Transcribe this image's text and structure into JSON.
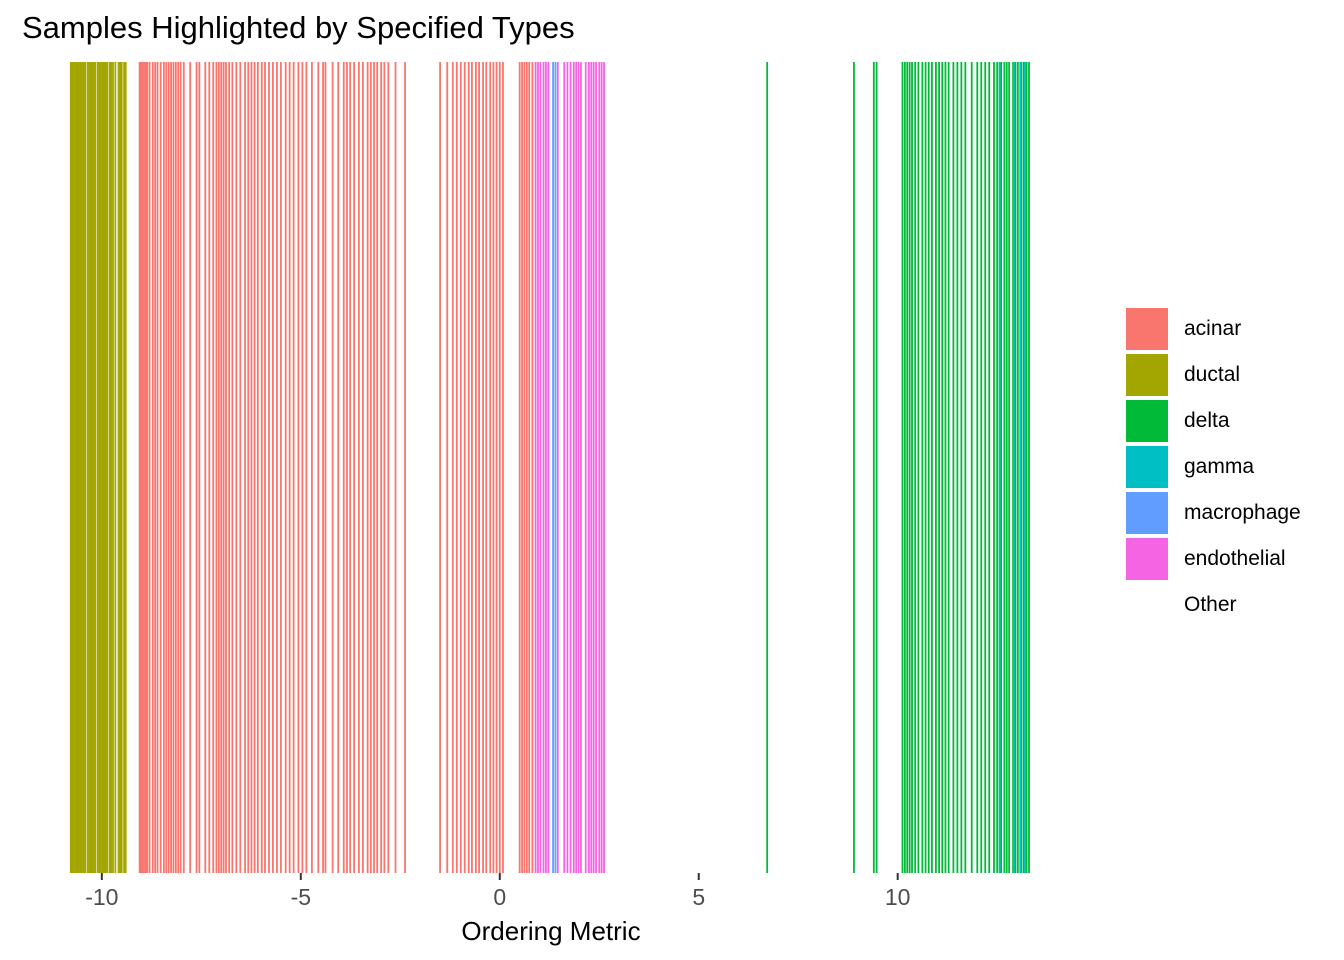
{
  "chart_data": {
    "type": "bar",
    "title": "Samples Highlighted by Specified Types",
    "xlabel": "Ordering Metric",
    "ylabel": "",
    "xlim": [
      -10.8,
      13.4
    ],
    "xticks": [
      -10,
      -5,
      0,
      5,
      10
    ],
    "xtick_labels": [
      "-10",
      "-5",
      "0",
      "5",
      "10"
    ],
    "grid": false,
    "legend_position": "right",
    "legend": [
      {
        "name": "acinar",
        "color": "#F8766D"
      },
      {
        "name": "ductal",
        "color": "#A3A500"
      },
      {
        "name": "delta",
        "color": "#00BA38"
      },
      {
        "name": "gamma",
        "color": "#00BFC4"
      },
      {
        "name": "macrophage",
        "color": "#619CFF"
      },
      {
        "name": "endothelial",
        "color": "#F564E3"
      },
      {
        "name": "Other",
        "color": "#FFFFFF"
      }
    ],
    "series": [
      {
        "name": "ductal",
        "values": [
          -10.78,
          -10.74,
          -10.7,
          -10.66,
          -10.62,
          -10.58,
          -10.54,
          -10.5,
          -10.46,
          -10.42,
          -10.36,
          -10.32,
          -10.28,
          -10.24,
          -10.2,
          -10.16,
          -10.1,
          -10.06,
          -10.02,
          -9.98,
          -9.94,
          -9.9,
          -9.86,
          -9.8,
          -9.76,
          -9.72,
          -9.66,
          -9.58,
          -9.54,
          -9.5,
          -9.44,
          -9.42,
          -9.4
        ]
      },
      {
        "name": "acinar",
        "values": [
          -9.05,
          -9.02,
          -8.98,
          -8.94,
          -8.9,
          -8.86,
          -8.8,
          -8.72,
          -8.66,
          -8.6,
          -8.52,
          -8.44,
          -8.38,
          -8.32,
          -8.26,
          -8.2,
          -8.14,
          -8.08,
          -8.02,
          -7.94,
          -7.78,
          -7.62,
          -7.55,
          -7.4,
          -7.3,
          -7.2,
          -7.12,
          -7.06,
          -7.0,
          -6.94,
          -6.88,
          -6.8,
          -6.72,
          -6.62,
          -6.52,
          -6.4,
          -6.32,
          -6.24,
          -6.16,
          -6.08,
          -5.98,
          -5.9,
          -5.8,
          -5.7,
          -5.6,
          -5.5,
          -5.38,
          -5.28,
          -5.18,
          -5.06,
          -4.96,
          -4.86,
          -4.72,
          -4.56,
          -4.44,
          -4.38,
          -4.2,
          -4.06,
          -3.92,
          -3.84,
          -3.76,
          -3.66,
          -3.54,
          -3.44,
          -3.32,
          -3.24,
          -3.16,
          -3.08,
          -2.98,
          -2.9,
          -2.8,
          -2.62,
          -2.38,
          -1.5,
          -1.32,
          -1.18,
          -1.08,
          -0.98,
          -0.88,
          -0.78,
          -0.7,
          -0.6,
          -0.52,
          -0.42,
          -0.34,
          -0.24,
          -0.16,
          -0.08,
          0.0,
          0.08,
          0.5,
          0.56,
          0.62,
          0.68,
          0.74,
          0.82
        ]
      },
      {
        "name": "endothelial",
        "values": [
          0.9,
          0.96,
          1.02,
          1.1,
          1.16,
          1.22,
          1.46,
          1.62,
          1.7,
          1.78,
          1.86,
          1.92,
          1.98,
          2.04,
          2.16,
          2.24,
          2.3,
          2.36,
          2.42,
          2.5,
          2.56,
          2.62
        ]
      },
      {
        "name": "macrophage",
        "values": [
          1.34,
          1.4
        ]
      },
      {
        "name": "delta",
        "values": [
          6.72,
          8.9,
          9.4,
          9.47,
          10.12,
          10.18,
          10.24,
          10.3,
          10.36,
          10.44,
          10.52,
          10.62,
          10.7,
          10.78,
          10.86,
          10.96,
          11.04,
          11.12,
          11.2,
          11.28,
          11.4,
          11.5,
          11.6,
          11.7,
          11.86,
          12.0,
          12.1,
          12.2,
          12.3,
          12.42,
          12.5,
          12.6,
          12.68,
          12.74,
          12.8,
          12.9,
          12.96,
          13.02,
          13.1,
          13.16,
          13.24,
          13.3
        ]
      },
      {
        "name": "gamma",
        "values": [
          12.56,
          12.92,
          13.08,
          13.2
        ]
      }
    ]
  }
}
